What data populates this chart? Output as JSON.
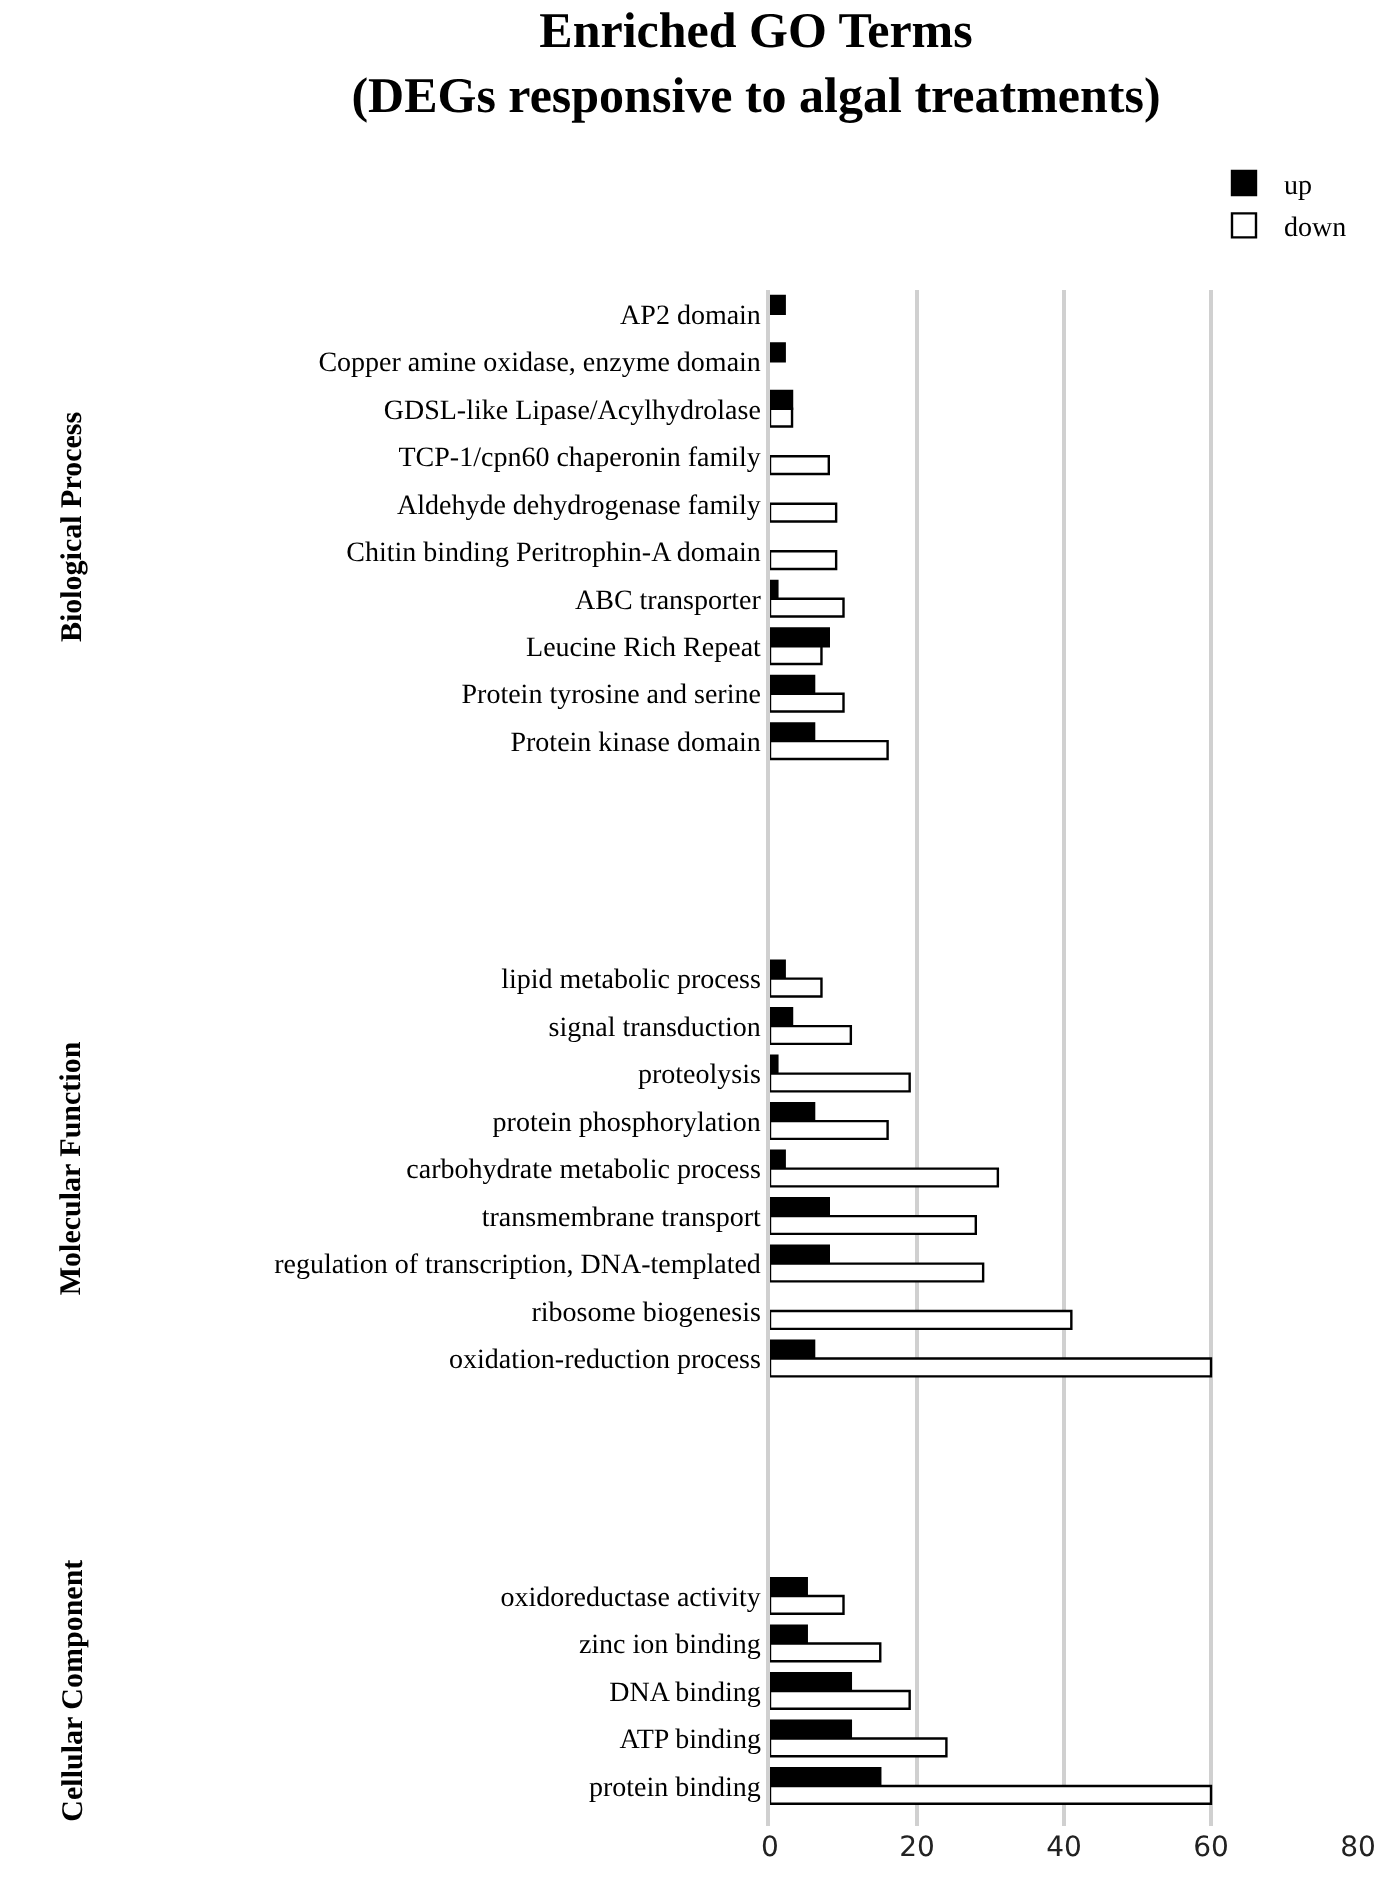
{
  "chart_data": {
    "type": "bar",
    "orientation": "horizontal",
    "title": "Enriched GO Terms\n(DEGs responsive to algal treatments)",
    "categories": [
      "AP2 domain",
      "Copper amine oxidase, enzyme domain",
      "GDSL-like Lipase/Acylhydrolase",
      "TCP-1/cpn60 chaperonin family",
      "Aldehyde dehydrogenase family",
      "Chitin binding Peritrophin-A domain",
      "ABC transporter",
      "Leucine Rich Repeat",
      "Protein tyrosine and serine",
      "Protein kinase domain",
      null,
      null,
      null,
      null,
      "lipid metabolic process",
      "signal transduction",
      "proteolysis",
      "protein phosphorylation",
      "carbohydrate metabolic process",
      "transmembrane transport",
      "regulation of transcription, DNA-templated",
      "ribosome biogenesis",
      "oxidation-reduction process",
      null,
      null,
      null,
      null,
      "oxidoreductase activity",
      "zinc ion binding",
      "DNA binding",
      "ATP binding",
      "protein binding"
    ],
    "series": [
      {
        "name": "up",
        "color": "#000000",
        "values": [
          2,
          2,
          3,
          null,
          null,
          null,
          1,
          8,
          6,
          6,
          null,
          null,
          null,
          null,
          2,
          3,
          1,
          6,
          2,
          8,
          8,
          null,
          6,
          null,
          null,
          null,
          null,
          5,
          5,
          11,
          11,
          15
        ]
      },
      {
        "name": "down",
        "color": "#ffffff",
        "values": [
          null,
          null,
          3,
          8,
          9,
          9,
          10,
          7,
          10,
          16,
          null,
          null,
          null,
          null,
          7,
          11,
          19,
          16,
          31,
          28,
          29,
          41,
          60,
          null,
          null,
          null,
          null,
          10,
          15,
          19,
          24,
          60
        ]
      }
    ],
    "xlim": [
      0,
      80
    ],
    "xticks": [
      0,
      20,
      40,
      60,
      80
    ],
    "grid": "x",
    "legend": "top right",
    "annotations": [
      "Biological Process",
      "Molecular Function",
      "Cellular Component"
    ]
  }
}
